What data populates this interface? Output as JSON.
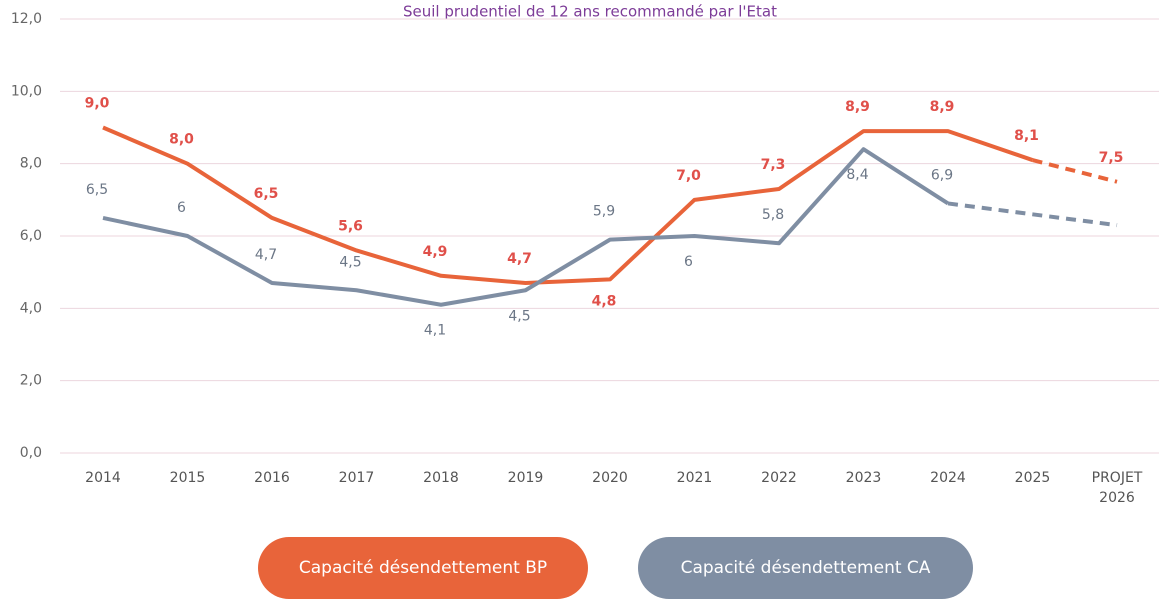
{
  "chart_data": {
    "type": "line",
    "title": "Seuil prudentiel de 12 ans recommandé par l'Etat",
    "categories": [
      "2014",
      "2015",
      "2016",
      "2017",
      "2018",
      "2019",
      "2020",
      "2021",
      "2022",
      "2023",
      "2024",
      "2025",
      "PROJET 2026"
    ],
    "series": [
      {
        "name": "Capacité désendettement BP",
        "color": "#e8643a",
        "dashed_from": 11,
        "values": [
          9.0,
          8.0,
          6.5,
          5.6,
          4.9,
          4.7,
          4.8,
          7.0,
          7.3,
          8.9,
          8.9,
          8.1,
          7.5
        ],
        "value_labels": [
          "9,0",
          "8,0",
          "6,5",
          "5,6",
          "4,9",
          "4,7",
          "4,8",
          "7,0",
          "7,3",
          "8,9",
          "8,9",
          "8,1",
          "7,5"
        ]
      },
      {
        "name": "Capacité désendettement CA",
        "color": "#7f8ea3",
        "dashed_from": 10,
        "values": [
          6.5,
          6,
          4.7,
          4.5,
          4.1,
          4.5,
          5.9,
          6,
          5.8,
          8.4,
          6.9,
          6.6,
          6.3
        ],
        "value_labels": [
          "6,5",
          "6",
          "4,7",
          "4,5",
          "4,1",
          "4,5",
          "5,9",
          "6",
          "5,8",
          "8,4",
          "6,9",
          null,
          null
        ]
      }
    ],
    "ylim": [
      0,
      12
    ],
    "yticks": [
      {
        "value": 0,
        "label": "0,0"
      },
      {
        "value": 2,
        "label": "2,0"
      },
      {
        "value": 4,
        "label": "4,0"
      },
      {
        "value": 6,
        "label": "6,0"
      },
      {
        "value": 8,
        "label": "8,0"
      },
      {
        "value": 10,
        "label": "10,0"
      },
      {
        "value": 12,
        "label": "12,0"
      }
    ],
    "grid": true,
    "legend": "bottom"
  }
}
